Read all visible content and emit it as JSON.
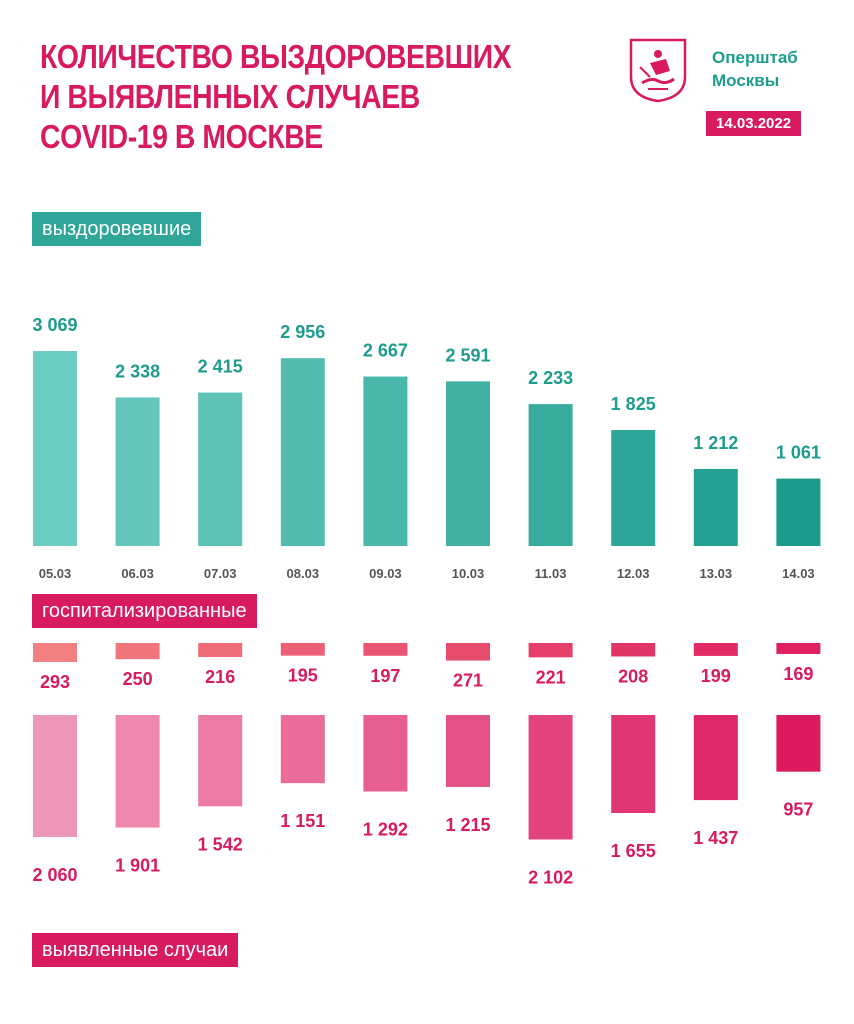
{
  "header": {
    "title_lines": [
      "КОЛИЧЕСТВО ВЫЗДОРОВЕВШИХ",
      "И ВЫЯВЛЕННЫХ СЛУЧАЕВ",
      "COVID-19 В МОСКВЕ"
    ],
    "org_lines": [
      "Оперштаб",
      "Москвы"
    ],
    "date": "14.03.2022",
    "logo_icon": "moscow-coat-of-arms-icon"
  },
  "labels": {
    "recovered": "выздоровевшие",
    "hospitalized": "госпитализированные",
    "cases": "выявленные случаи"
  },
  "colors": {
    "brand_pink": "#d81b60",
    "brand_teal": "#2fa698"
  },
  "chart_data": {
    "type": "bar",
    "categories": [
      "05.03",
      "06.03",
      "07.03",
      "08.03",
      "09.03",
      "10.03",
      "11.03",
      "12.03",
      "13.03",
      "14.03"
    ],
    "series": [
      {
        "name": "выздоровевшие",
        "values": [
          3069,
          2338,
          2415,
          2956,
          2667,
          2591,
          2233,
          1825,
          1212,
          1061
        ],
        "labels": [
          "3 069",
          "2 338",
          "2 415",
          "2 956",
          "2 667",
          "2 591",
          "2 233",
          "1 825",
          "1 212",
          "1 061"
        ]
      },
      {
        "name": "госпитализированные",
        "values": [
          293,
          250,
          216,
          195,
          197,
          271,
          221,
          208,
          199,
          169
        ],
        "labels": [
          "293",
          "250",
          "216",
          "195",
          "197",
          "271",
          "221",
          "208",
          "199",
          "169"
        ]
      },
      {
        "name": "выявленные случаи",
        "values": [
          2060,
          1901,
          1542,
          1151,
          1292,
          1215,
          2102,
          1655,
          1437,
          957
        ],
        "labels": [
          "2 060",
          "1 901",
          "1 542",
          "1 151",
          "1 292",
          "1 215",
          "2 102",
          "1 655",
          "1 437",
          "957"
        ]
      }
    ]
  }
}
